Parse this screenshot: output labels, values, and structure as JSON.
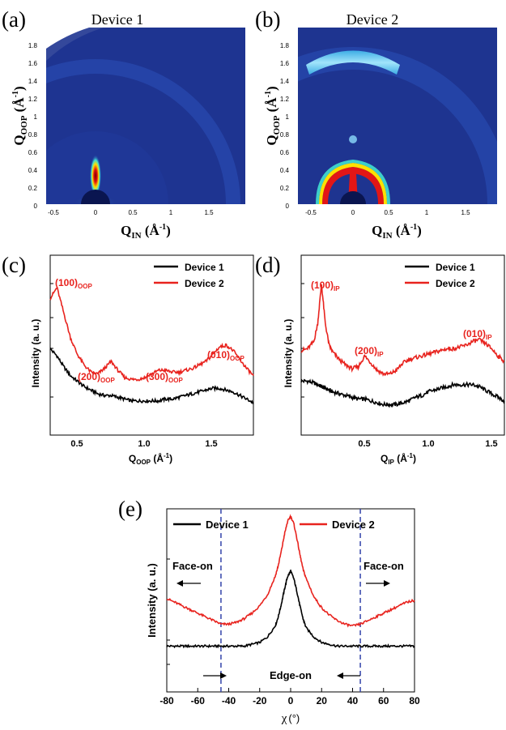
{
  "chart_data": [
    {
      "panel": "(a)",
      "type": "heatmap",
      "title": "Device 1",
      "xlabel": "Q",
      "xlabel_sub": "IN",
      "xlabel_unit": "(Å⁻¹)",
      "ylabel": "Q",
      "ylabel_sub": "OOP",
      "ylabel_unit": "(Å⁻¹)",
      "xlim": [
        -0.7,
        2.0
      ],
      "ylim": [
        0,
        1.95
      ],
      "x_ticks": [
        "-0.5",
        "0",
        "0.5",
        "1",
        "1.5"
      ],
      "y_ticks": [
        "0",
        "0.2",
        "0.4",
        "0.6",
        "0.8",
        "1",
        "1.2",
        "1.4",
        "1.6",
        "1.8"
      ],
      "features": [
        {
          "kind": "spot",
          "q_in": 0.0,
          "q_oop": 0.32,
          "intensity": "high"
        },
        {
          "kind": "ring",
          "q": 1.6,
          "intensity": "weak"
        }
      ]
    },
    {
      "panel": "(b)",
      "type": "heatmap",
      "title": "Device 2",
      "xlabel": "Q",
      "xlabel_sub": "IN",
      "xlabel_unit": "(Å⁻¹)",
      "ylabel": "Q",
      "ylabel_sub": "OOP",
      "ylabel_unit": "(Å⁻¹)",
      "xlim": [
        -0.7,
        2.0
      ],
      "ylim": [
        0,
        1.95
      ],
      "x_ticks": [
        "-0.5",
        "0",
        "0.5",
        "1",
        "1.5"
      ],
      "y_ticks": [
        "0",
        "0.2",
        "0.4",
        "0.6",
        "0.8",
        "1",
        "1.2",
        "1.4",
        "1.6",
        "1.8"
      ],
      "features": [
        {
          "kind": "arc",
          "q": 0.36,
          "intensity": "high"
        },
        {
          "kind": "spot",
          "q_in": 0.0,
          "q_oop": 0.74,
          "intensity": "weak"
        },
        {
          "kind": "arc",
          "q": 1.6,
          "intensity": "medium"
        }
      ]
    },
    {
      "panel": "(c)",
      "type": "line",
      "xlabel": "Q",
      "xlabel_sub": "OOP",
      "xlabel_unit": "(Å⁻¹)",
      "ylabel": "Intensity (a. u.)",
      "xlim": [
        0.3,
        1.8
      ],
      "x_ticks": [
        "0.5",
        "1.0",
        "1.5"
      ],
      "y_scale": "log",
      "legend": "top-right",
      "x": [
        0.3,
        0.35,
        0.4,
        0.45,
        0.5,
        0.55,
        0.6,
        0.65,
        0.7,
        0.75,
        0.8,
        0.85,
        0.9,
        0.95,
        1.0,
        1.05,
        1.1,
        1.15,
        1.2,
        1.25,
        1.3,
        1.35,
        1.4,
        1.45,
        1.5,
        1.55,
        1.6,
        1.65,
        1.7,
        1.75,
        1.8
      ],
      "series": [
        {
          "name": "Device 1",
          "color": "#000000",
          "values": [
            0.48,
            0.44,
            0.38,
            0.33,
            0.3,
            0.27,
            0.25,
            0.23,
            0.22,
            0.22,
            0.21,
            0.2,
            0.19,
            0.19,
            0.19,
            0.19,
            0.19,
            0.2,
            0.2,
            0.21,
            0.22,
            0.23,
            0.24,
            0.25,
            0.26,
            0.26,
            0.25,
            0.24,
            0.22,
            0.2,
            0.18
          ]
        },
        {
          "name": "Device 2",
          "color": "#e8231e",
          "values": [
            0.76,
            0.82,
            0.68,
            0.54,
            0.45,
            0.39,
            0.35,
            0.34,
            0.37,
            0.41,
            0.36,
            0.32,
            0.31,
            0.31,
            0.32,
            0.34,
            0.36,
            0.36,
            0.35,
            0.35,
            0.36,
            0.37,
            0.39,
            0.41,
            0.45,
            0.49,
            0.5,
            0.47,
            0.42,
            0.37,
            0.33
          ]
        }
      ],
      "annotations": [
        {
          "text": "(100)",
          "sub": "OOP",
          "x": 0.37
        },
        {
          "text": "(200)",
          "sub": "OOP",
          "x": 0.74
        },
        {
          "text": "(300)",
          "sub": "OOP",
          "x": 1.13
        },
        {
          "text": "(010)",
          "sub": "OOP",
          "x": 1.6
        }
      ]
    },
    {
      "panel": "(d)",
      "type": "line",
      "xlabel": "Q",
      "xlabel_sub": "IP",
      "xlabel_unit": "(Å⁻¹)",
      "ylabel": "Intensity (a. u.)",
      "xlim": [
        0.2,
        1.8
      ],
      "x_ticks": [
        "0.5",
        "1.0",
        "1.5"
      ],
      "y_scale": "log",
      "legend": "top-right",
      "x": [
        0.2,
        0.25,
        0.3,
        0.33,
        0.36,
        0.39,
        0.42,
        0.45,
        0.5,
        0.55,
        0.6,
        0.65,
        0.7,
        0.75,
        0.8,
        0.85,
        0.9,
        0.95,
        1.0,
        1.05,
        1.1,
        1.15,
        1.2,
        1.25,
        1.3,
        1.35,
        1.4,
        1.45,
        1.5,
        1.55,
        1.6,
        1.65,
        1.7,
        1.75,
        1.8
      ],
      "series": [
        {
          "name": "Device 1",
          "color": "#000000",
          "values": [
            0.3,
            0.3,
            0.29,
            0.28,
            0.27,
            0.26,
            0.25,
            0.24,
            0.23,
            0.22,
            0.21,
            0.2,
            0.2,
            0.19,
            0.18,
            0.17,
            0.17,
            0.17,
            0.18,
            0.19,
            0.21,
            0.22,
            0.24,
            0.25,
            0.26,
            0.27,
            0.28,
            0.28,
            0.28,
            0.28,
            0.27,
            0.25,
            0.23,
            0.21,
            0.19
          ]
        },
        {
          "name": "Device 2",
          "color": "#e8231e",
          "values": [
            0.47,
            0.48,
            0.52,
            0.62,
            0.84,
            0.62,
            0.5,
            0.46,
            0.42,
            0.39,
            0.37,
            0.38,
            0.44,
            0.4,
            0.36,
            0.34,
            0.34,
            0.36,
            0.4,
            0.42,
            0.43,
            0.44,
            0.45,
            0.46,
            0.47,
            0.48,
            0.48,
            0.49,
            0.5,
            0.52,
            0.53,
            0.51,
            0.48,
            0.44,
            0.41
          ]
        }
      ],
      "annotations": [
        {
          "text": "(100)",
          "sub": "IP",
          "x": 0.36
        },
        {
          "text": "(200)",
          "sub": "IP",
          "x": 0.71
        },
        {
          "text": "(010)",
          "sub": "IP",
          "x": 1.58
        }
      ]
    },
    {
      "panel": "(e)",
      "type": "line",
      "xlabel": "χ",
      "xlabel_unit": "(°)",
      "ylabel": "Intensity (a. u.)",
      "xlim": [
        -80,
        80
      ],
      "x_ticks": [
        "-80",
        "-60",
        "-40",
        "-20",
        "0",
        "20",
        "40",
        "60",
        "80"
      ],
      "y_scale": "log",
      "legend": "top",
      "x": [
        -80,
        -75,
        -70,
        -65,
        -60,
        -55,
        -50,
        -45,
        -40,
        -35,
        -30,
        -25,
        -20,
        -15,
        -10,
        -8,
        -6,
        -4,
        -2,
        0,
        2,
        4,
        6,
        8,
        10,
        15,
        20,
        25,
        30,
        35,
        40,
        45,
        50,
        55,
        60,
        65,
        70,
        75,
        80
      ],
      "series": [
        {
          "name": "Device 1",
          "color": "#000000",
          "values": [
            0.25,
            0.25,
            0.25,
            0.25,
            0.25,
            0.25,
            0.25,
            0.25,
            0.25,
            0.25,
            0.25,
            0.26,
            0.27,
            0.3,
            0.36,
            0.41,
            0.48,
            0.56,
            0.63,
            0.66,
            0.62,
            0.55,
            0.47,
            0.4,
            0.35,
            0.3,
            0.27,
            0.26,
            0.25,
            0.25,
            0.25,
            0.25,
            0.25,
            0.25,
            0.25,
            0.25,
            0.25,
            0.25,
            0.25
          ]
        },
        {
          "name": "Device 2",
          "color": "#e8231e",
          "values": [
            0.51,
            0.49,
            0.47,
            0.45,
            0.43,
            0.41,
            0.39,
            0.37,
            0.37,
            0.38,
            0.4,
            0.43,
            0.47,
            0.53,
            0.63,
            0.69,
            0.77,
            0.86,
            0.93,
            0.96,
            0.92,
            0.84,
            0.75,
            0.67,
            0.62,
            0.52,
            0.46,
            0.42,
            0.39,
            0.37,
            0.36,
            0.37,
            0.39,
            0.41,
            0.43,
            0.45,
            0.47,
            0.49,
            0.5
          ]
        }
      ],
      "reference_lines": [
        -45,
        45
      ],
      "annotations": [
        {
          "text": "Face-on",
          "arrow": "left"
        },
        {
          "text": "Face-on",
          "arrow": "right"
        },
        {
          "text": "Edge-on",
          "arrow": "inward"
        }
      ]
    }
  ],
  "colors": {
    "device1": "#000000",
    "device2": "#e8231e",
    "map_background": "#1a2f85",
    "reference_line": "#3344aa"
  }
}
